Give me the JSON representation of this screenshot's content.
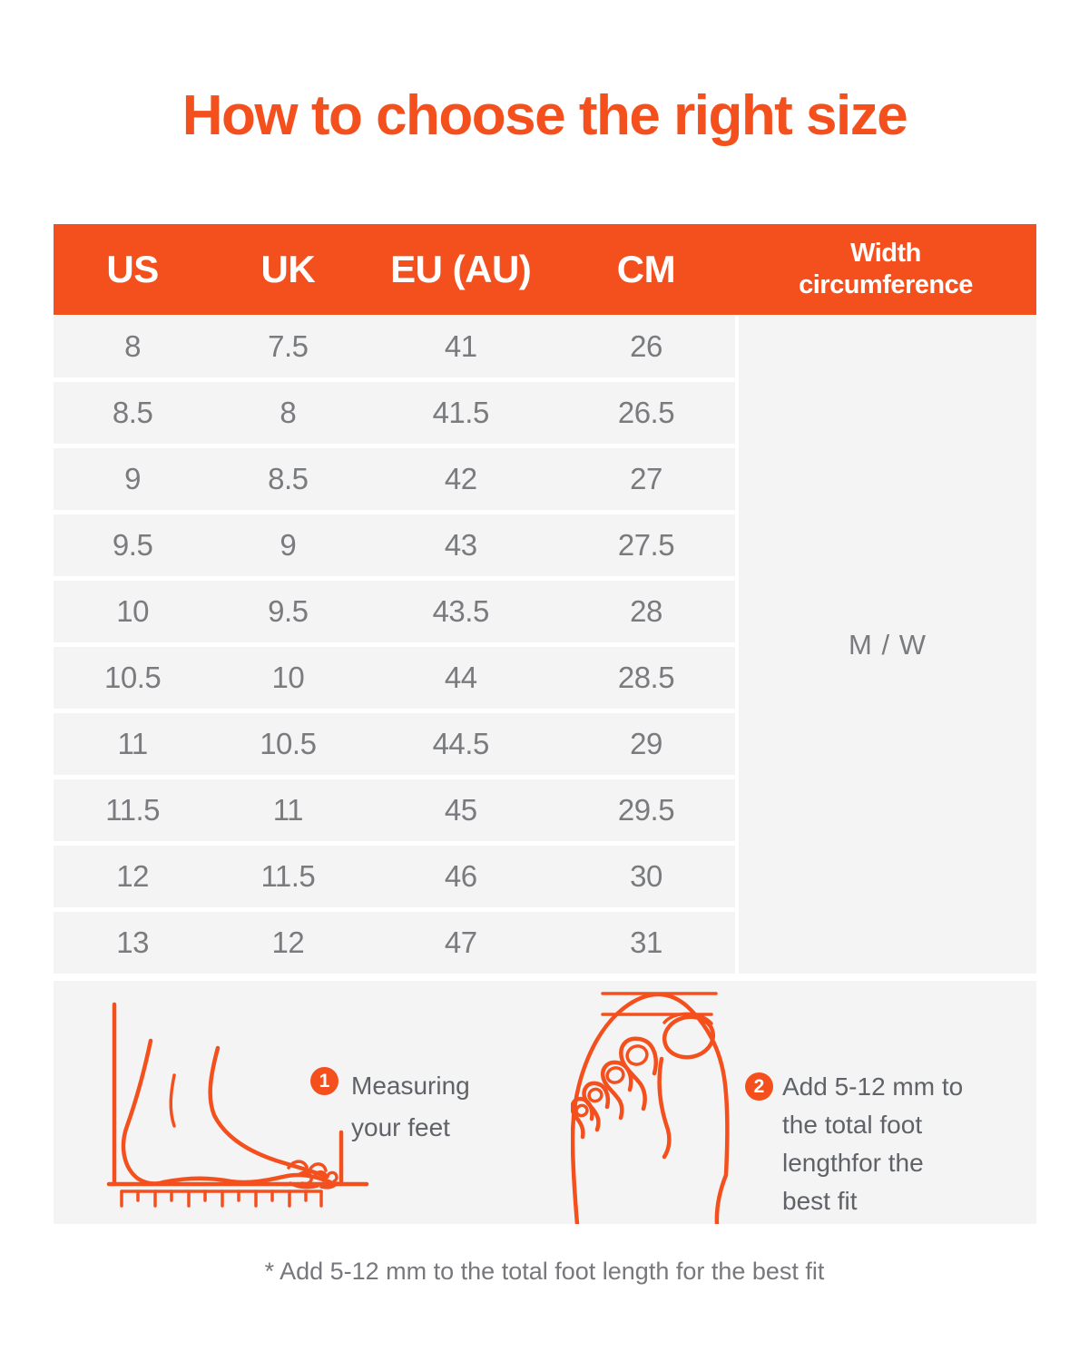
{
  "title": "How to choose the right size",
  "colors": {
    "accent": "#F4501E",
    "row_background": "#F4F4F5",
    "header_text": "#FFFFFF",
    "table_text": "#7A7B7E",
    "caption_text": "#5F6266",
    "footnote_text": "#77787B"
  },
  "chart_data": {
    "type": "table",
    "title": "How to choose the right size",
    "columns": [
      "US",
      "UK",
      "EU (AU)",
      "CM",
      "Width circumference"
    ],
    "rows": [
      [
        "8",
        "7.5",
        "41",
        "26"
      ],
      [
        "8.5",
        "8",
        "41.5",
        "26.5"
      ],
      [
        "9",
        "8.5",
        "42",
        "27"
      ],
      [
        "9.5",
        "9",
        "43",
        "27.5"
      ],
      [
        "10",
        "9.5",
        "43.5",
        "28"
      ],
      [
        "10.5",
        "10",
        "44",
        "28.5"
      ],
      [
        "11",
        "10.5",
        "44.5",
        "29"
      ],
      [
        "11.5",
        "11",
        "45",
        "29.5"
      ],
      [
        "12",
        "11.5",
        "46",
        "30"
      ],
      [
        "13",
        "12",
        "47",
        "31"
      ]
    ],
    "width_circumference_all_rows": "M / W"
  },
  "steps": [
    {
      "number": "1",
      "lines": [
        "Measuring",
        "your feet"
      ]
    },
    {
      "number": "2",
      "lines": [
        "Add 5-12 mm to",
        "the total foot",
        "lengthfor the",
        "best fit"
      ]
    }
  ],
  "footnote": "* Add 5-12 mm to the total foot length for the best fit"
}
